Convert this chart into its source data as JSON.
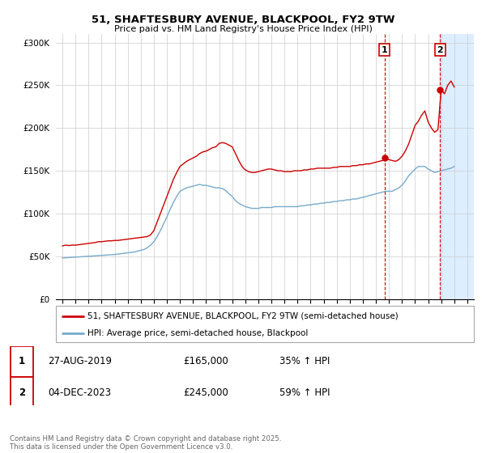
{
  "title": "51, SHAFTESBURY AVENUE, BLACKPOOL, FY2 9TW",
  "subtitle": "Price paid vs. HM Land Registry's House Price Index (HPI)",
  "legend_line1": "51, SHAFTESBURY AVENUE, BLACKPOOL, FY2 9TW (semi-detached house)",
  "legend_line2": "HPI: Average price, semi-detached house, Blackpool",
  "footer": "Contains HM Land Registry data © Crown copyright and database right 2025.\nThis data is licensed under the Open Government Licence v3.0.",
  "red_color": "#cc0000",
  "blue_color": "#77aacc",
  "shaded_color": "#ddeeff",
  "marker1_date": 2019.65,
  "marker2_date": 2023.92,
  "marker1_value": 165000,
  "marker2_value": 245000,
  "annotation1": "1",
  "annotation2": "2",
  "table_rows": [
    [
      "1",
      "27-AUG-2019",
      "£165,000",
      "35% ↑ HPI"
    ],
    [
      "2",
      "04-DEC-2023",
      "£245,000",
      "59% ↑ HPI"
    ]
  ],
  "xlim": [
    1994.5,
    2026.5
  ],
  "ylim": [
    0,
    310000
  ],
  "yticks": [
    0,
    50000,
    100000,
    150000,
    200000,
    250000,
    300000
  ],
  "ytick_labels": [
    "£0",
    "£50K",
    "£100K",
    "£150K",
    "£200K",
    "£250K",
    "£300K"
  ],
  "xticks": [
    1995,
    1996,
    1997,
    1998,
    1999,
    2000,
    2001,
    2002,
    2003,
    2004,
    2005,
    2006,
    2007,
    2008,
    2009,
    2010,
    2011,
    2012,
    2013,
    2014,
    2015,
    2016,
    2017,
    2018,
    2019,
    2020,
    2021,
    2022,
    2023,
    2024,
    2025,
    2026
  ],
  "red_x": [
    1995.0,
    1995.25,
    1995.5,
    1995.75,
    1996.0,
    1996.25,
    1996.5,
    1996.75,
    1997.0,
    1997.25,
    1997.5,
    1997.75,
    1998.0,
    1998.25,
    1998.5,
    1998.75,
    1999.0,
    1999.25,
    1999.5,
    1999.75,
    2000.0,
    2000.25,
    2000.5,
    2000.75,
    2001.0,
    2001.25,
    2001.5,
    2001.75,
    2002.0,
    2002.25,
    2002.5,
    2002.75,
    2003.0,
    2003.25,
    2003.5,
    2003.75,
    2004.0,
    2004.25,
    2004.5,
    2004.75,
    2005.0,
    2005.25,
    2005.5,
    2005.75,
    2006.0,
    2006.25,
    2006.5,
    2006.75,
    2007.0,
    2007.25,
    2007.5,
    2007.75,
    2008.0,
    2008.25,
    2008.5,
    2008.75,
    2009.0,
    2009.25,
    2009.5,
    2009.75,
    2010.0,
    2010.25,
    2010.5,
    2010.75,
    2011.0,
    2011.25,
    2011.5,
    2011.75,
    2012.0,
    2012.25,
    2012.5,
    2012.75,
    2013.0,
    2013.25,
    2013.5,
    2013.75,
    2014.0,
    2014.25,
    2014.5,
    2014.75,
    2015.0,
    2015.25,
    2015.5,
    2015.75,
    2016.0,
    2016.25,
    2016.5,
    2016.75,
    2017.0,
    2017.25,
    2017.5,
    2017.75,
    2018.0,
    2018.25,
    2018.5,
    2018.75,
    2019.0,
    2019.25,
    2019.5,
    2019.75,
    2020.0,
    2020.25,
    2020.5,
    2020.75,
    2021.0,
    2021.25,
    2021.5,
    2021.75,
    2022.0,
    2022.25,
    2022.5,
    2022.75,
    2023.0,
    2023.25,
    2023.5,
    2023.75,
    2024.0,
    2024.25,
    2024.5,
    2024.75,
    2025.0
  ],
  "red_y": [
    62000,
    63000,
    62500,
    63000,
    63000,
    63500,
    64000,
    64500,
    65000,
    65500,
    66000,
    67000,
    67000,
    67500,
    68000,
    68000,
    68500,
    68500,
    69000,
    69500,
    70000,
    70500,
    71000,
    71500,
    72000,
    72500,
    73000,
    75000,
    80000,
    90000,
    100000,
    110000,
    120000,
    130000,
    140000,
    148000,
    155000,
    158000,
    161000,
    163000,
    165000,
    167000,
    170000,
    172000,
    173000,
    175000,
    177000,
    178000,
    182000,
    183000,
    182000,
    180000,
    178000,
    170000,
    162000,
    155000,
    151000,
    149000,
    148000,
    148000,
    149000,
    150000,
    151000,
    152000,
    152000,
    151000,
    150000,
    150000,
    149000,
    149000,
    149000,
    150000,
    150000,
    150000,
    151000,
    151000,
    152000,
    152000,
    153000,
    153000,
    153000,
    153000,
    153000,
    154000,
    154000,
    155000,
    155000,
    155000,
    155000,
    156000,
    156000,
    157000,
    157000,
    158000,
    158000,
    159000,
    160000,
    161000,
    162000,
    165000,
    163000,
    162000,
    161000,
    163000,
    167000,
    173000,
    181000,
    192000,
    203000,
    208000,
    215000,
    220000,
    207000,
    200000,
    195000,
    198000,
    245000,
    240000,
    250000,
    255000,
    248000
  ],
  "blue_x": [
    1995.0,
    1995.25,
    1995.5,
    1995.75,
    1996.0,
    1996.25,
    1996.5,
    1996.75,
    1997.0,
    1997.25,
    1997.5,
    1997.75,
    1998.0,
    1998.25,
    1998.5,
    1998.75,
    1999.0,
    1999.25,
    1999.5,
    1999.75,
    2000.0,
    2000.25,
    2000.5,
    2000.75,
    2001.0,
    2001.25,
    2001.5,
    2001.75,
    2002.0,
    2002.25,
    2002.5,
    2002.75,
    2003.0,
    2003.25,
    2003.5,
    2003.75,
    2004.0,
    2004.25,
    2004.5,
    2004.75,
    2005.0,
    2005.25,
    2005.5,
    2005.75,
    2006.0,
    2006.25,
    2006.5,
    2006.75,
    2007.0,
    2007.25,
    2007.5,
    2007.75,
    2008.0,
    2008.25,
    2008.5,
    2008.75,
    2009.0,
    2009.25,
    2009.5,
    2009.75,
    2010.0,
    2010.25,
    2010.5,
    2010.75,
    2011.0,
    2011.25,
    2011.5,
    2011.75,
    2012.0,
    2012.25,
    2012.5,
    2012.75,
    2013.0,
    2013.25,
    2013.5,
    2013.75,
    2014.0,
    2014.25,
    2014.5,
    2014.75,
    2015.0,
    2015.25,
    2015.5,
    2015.75,
    2016.0,
    2016.25,
    2016.5,
    2016.75,
    2017.0,
    2017.25,
    2017.5,
    2017.75,
    2018.0,
    2018.25,
    2018.5,
    2018.75,
    2019.0,
    2019.25,
    2019.5,
    2019.75,
    2020.0,
    2020.25,
    2020.5,
    2020.75,
    2021.0,
    2021.25,
    2021.5,
    2021.75,
    2022.0,
    2022.25,
    2022.5,
    2022.75,
    2023.0,
    2023.25,
    2023.5,
    2023.75,
    2024.0,
    2024.25,
    2024.5,
    2024.75,
    2025.0
  ],
  "blue_y": [
    48000,
    48200,
    48500,
    48800,
    49000,
    49200,
    49500,
    49800,
    50000,
    50200,
    50500,
    50800,
    51000,
    51200,
    51500,
    51800,
    52000,
    52500,
    53000,
    53500,
    54000,
    54500,
    55000,
    56000,
    57000,
    58000,
    60000,
    63000,
    67000,
    73000,
    80000,
    88000,
    96000,
    105000,
    113000,
    120000,
    126000,
    128000,
    130000,
    131000,
    132000,
    133000,
    134000,
    133000,
    133000,
    132000,
    131000,
    130000,
    130000,
    129000,
    127000,
    123000,
    120000,
    115000,
    112000,
    110000,
    108000,
    107000,
    106000,
    106000,
    106000,
    107000,
    107000,
    107000,
    107000,
    108000,
    108000,
    108000,
    108000,
    108000,
    108000,
    108000,
    108000,
    109000,
    109000,
    110000,
    110000,
    111000,
    111000,
    112000,
    112000,
    113000,
    113000,
    114000,
    114000,
    115000,
    115000,
    116000,
    116000,
    117000,
    117000,
    118000,
    119000,
    120000,
    121000,
    122000,
    123000,
    124000,
    125000,
    126000,
    126000,
    126000,
    128000,
    130000,
    133000,
    138000,
    144000,
    148000,
    152000,
    155000,
    155000,
    155000,
    152000,
    150000,
    148000,
    149000,
    150000,
    151000,
    152000,
    153000,
    155000
  ]
}
